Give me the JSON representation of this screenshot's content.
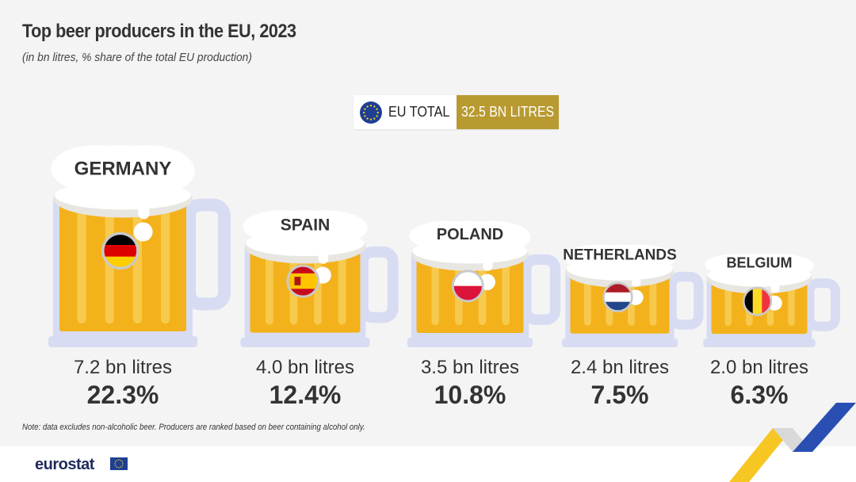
{
  "header": {
    "title": "Top beer producers in the EU, 2023",
    "subtitle": "(in bn litres, % share of the total EU production)"
  },
  "eu_total": {
    "label": "EU TOTAL",
    "value": "32.5 BN LITRES"
  },
  "colors": {
    "beer": "#f3b21b",
    "beer_light": "#f8cf5a",
    "glass": "#d7dcf3",
    "foam": "#ffffff",
    "foam_shade": "#e8e6e1",
    "gold_accent": "#b89a31",
    "eu_blue": "#1f3f95",
    "text": "#333333"
  },
  "chart_data": {
    "type": "bar",
    "title": "Top beer producers in the EU, 2023",
    "subtitle": "(in bn litres, % share of the total EU production)",
    "unit": "bn litres",
    "categories": [
      "GERMANY",
      "SPAIN",
      "POLAND",
      "NETHERLANDS",
      "BELGIUM"
    ],
    "values": [
      7.2,
      4.0,
      3.5,
      2.4,
      2.0
    ],
    "shares_percent": [
      22.3,
      12.4,
      10.8,
      7.5,
      6.3
    ],
    "value_labels": [
      "7.2 bn litres",
      "4.0 bn litres",
      "3.5 bn litres",
      "2.4 bn litres",
      "2.0 bn litres"
    ],
    "share_labels": [
      "22.3%",
      "12.4%",
      "10.8%",
      "7.5%",
      "6.3%"
    ],
    "flags": [
      "germany-flag-icon",
      "spain-flag-icon",
      "poland-flag-icon",
      "netherlands-flag-icon",
      "belgium-flag-icon"
    ],
    "total_label": "32.5 BN LITRES"
  },
  "note": "Note: data excludes non-alcoholic beer. Producers are ranked based on beer containing alcohol only.",
  "footer": {
    "brand": "eurostat"
  }
}
